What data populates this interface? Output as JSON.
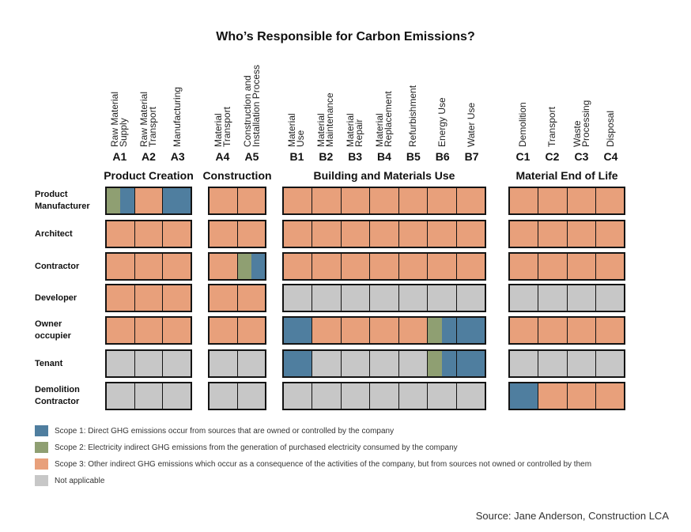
{
  "title": "Who’s Responsible for Carbon Emissions?",
  "colors": {
    "S1": "#4f7e9f",
    "S2": "#8f9f72",
    "S3": "#e8a07b",
    "NA": "#c7c7c7"
  },
  "stages": [
    {
      "code": "A1",
      "name": [
        "Raw Material",
        "Supply"
      ]
    },
    {
      "code": "A2",
      "name": [
        "Raw Material",
        "Transport"
      ]
    },
    {
      "code": "A3",
      "name": [
        "Manufacturing"
      ]
    },
    {
      "code": "A4",
      "name": [
        "Material",
        "Transport"
      ]
    },
    {
      "code": "A5",
      "name": [
        "Construction and",
        "Installation Process"
      ]
    },
    {
      "code": "B1",
      "name": [
        "Material",
        "Use"
      ]
    },
    {
      "code": "B2",
      "name": [
        "Material",
        "Maintenance"
      ]
    },
    {
      "code": "B3",
      "name": [
        "Material",
        "Repair"
      ]
    },
    {
      "code": "B4",
      "name": [
        "Material",
        "Replacement"
      ]
    },
    {
      "code": "B5",
      "name": [
        "Refurbishment"
      ]
    },
    {
      "code": "B6",
      "name": [
        "Energy Use"
      ]
    },
    {
      "code": "B7",
      "name": [
        "Water Use"
      ]
    },
    {
      "code": "C1",
      "name": [
        "Demolition"
      ]
    },
    {
      "code": "C2",
      "name": [
        "Transport"
      ]
    },
    {
      "code": "C3",
      "name": [
        "Waste",
        "Processing"
      ]
    },
    {
      "code": "C4",
      "name": [
        "Disposal"
      ]
    }
  ],
  "groups": [
    {
      "label": "Product Creation",
      "stages": 3
    },
    {
      "label": "Construction",
      "stages": 2
    },
    {
      "label": "Building and Materials Use",
      "stages": 7
    },
    {
      "label": "Material End of Life",
      "stages": 4
    }
  ],
  "roles": [
    {
      "name": "Product Manufacturer",
      "lines": [
        "Product",
        "Manufacturer"
      ],
      "cells": [
        [
          "S2",
          "S1"
        ],
        [
          "S3"
        ],
        [
          "S1"
        ],
        [
          "S3"
        ],
        [
          "S3"
        ],
        [
          "S3"
        ],
        [
          "S3"
        ],
        [
          "S3"
        ],
        [
          "S3"
        ],
        [
          "S3"
        ],
        [
          "S3"
        ],
        [
          "S3"
        ],
        [
          "S3"
        ],
        [
          "S3"
        ],
        [
          "S3"
        ],
        [
          "S3"
        ]
      ]
    },
    {
      "name": "Architect",
      "lines": [
        "Architect"
      ],
      "cells": [
        [
          "S3"
        ],
        [
          "S3"
        ],
        [
          "S3"
        ],
        [
          "S3"
        ],
        [
          "S3"
        ],
        [
          "S3"
        ],
        [
          "S3"
        ],
        [
          "S3"
        ],
        [
          "S3"
        ],
        [
          "S3"
        ],
        [
          "S3"
        ],
        [
          "S3"
        ],
        [
          "S3"
        ],
        [
          "S3"
        ],
        [
          "S3"
        ],
        [
          "S3"
        ]
      ]
    },
    {
      "name": "Contractor",
      "lines": [
        "Contractor"
      ],
      "cells": [
        [
          "S3"
        ],
        [
          "S3"
        ],
        [
          "S3"
        ],
        [
          "S3"
        ],
        [
          "S2",
          "S1"
        ],
        [
          "S3"
        ],
        [
          "S3"
        ],
        [
          "S3"
        ],
        [
          "S3"
        ],
        [
          "S3"
        ],
        [
          "S3"
        ],
        [
          "S3"
        ],
        [
          "S3"
        ],
        [
          "S3"
        ],
        [
          "S3"
        ],
        [
          "S3"
        ]
      ]
    },
    {
      "name": "Developer",
      "lines": [
        "Developer"
      ],
      "cells": [
        [
          "S3"
        ],
        [
          "S3"
        ],
        [
          "S3"
        ],
        [
          "S3"
        ],
        [
          "S3"
        ],
        [
          "NA"
        ],
        [
          "NA"
        ],
        [
          "NA"
        ],
        [
          "NA"
        ],
        [
          "NA"
        ],
        [
          "NA"
        ],
        [
          "NA"
        ],
        [
          "NA"
        ],
        [
          "NA"
        ],
        [
          "NA"
        ],
        [
          "NA"
        ]
      ]
    },
    {
      "name": "Owner occupier",
      "lines": [
        "Owner",
        "occupier"
      ],
      "cells": [
        [
          "S3"
        ],
        [
          "S3"
        ],
        [
          "S3"
        ],
        [
          "S3"
        ],
        [
          "S3"
        ],
        [
          "S1"
        ],
        [
          "S3"
        ],
        [
          "S3"
        ],
        [
          "S3"
        ],
        [
          "S3"
        ],
        [
          "S2",
          "S1"
        ],
        [
          "S1"
        ],
        [
          "S3"
        ],
        [
          "S3"
        ],
        [
          "S3"
        ],
        [
          "S3"
        ]
      ]
    },
    {
      "name": "Tenant",
      "lines": [
        "Tenant"
      ],
      "cells": [
        [
          "NA"
        ],
        [
          "NA"
        ],
        [
          "NA"
        ],
        [
          "NA"
        ],
        [
          "NA"
        ],
        [
          "S1"
        ],
        [
          "NA"
        ],
        [
          "NA"
        ],
        [
          "NA"
        ],
        [
          "NA"
        ],
        [
          "S2",
          "S1"
        ],
        [
          "S1"
        ],
        [
          "NA"
        ],
        [
          "NA"
        ],
        [
          "NA"
        ],
        [
          "NA"
        ]
      ]
    },
    {
      "name": "Demolition Contractor",
      "lines": [
        "Demolition",
        "Contractor"
      ],
      "cells": [
        [
          "NA"
        ],
        [
          "NA"
        ],
        [
          "NA"
        ],
        [
          "NA"
        ],
        [
          "NA"
        ],
        [
          "NA"
        ],
        [
          "NA"
        ],
        [
          "NA"
        ],
        [
          "NA"
        ],
        [
          "NA"
        ],
        [
          "NA"
        ],
        [
          "NA"
        ],
        [
          "S1"
        ],
        [
          "S3"
        ],
        [
          "S3"
        ],
        [
          "S3"
        ]
      ]
    }
  ],
  "legend": [
    {
      "key": "S1",
      "label": "Scope 1: Direct GHG emissions occur from sources that are owned or controlled by the company"
    },
    {
      "key": "S2",
      "label": "Scope 2: Electricity indirect GHG emissions from the generation of purchased electricity consumed by the company"
    },
    {
      "key": "S3",
      "label": "Scope 3: Other indirect GHG emissions which occur as a consequence of the activities of the company, but from sources not owned or controlled by them"
    },
    {
      "key": "NA",
      "label": "Not applicable"
    }
  ],
  "source": "Source: Jane Anderson, Construction LCA"
}
